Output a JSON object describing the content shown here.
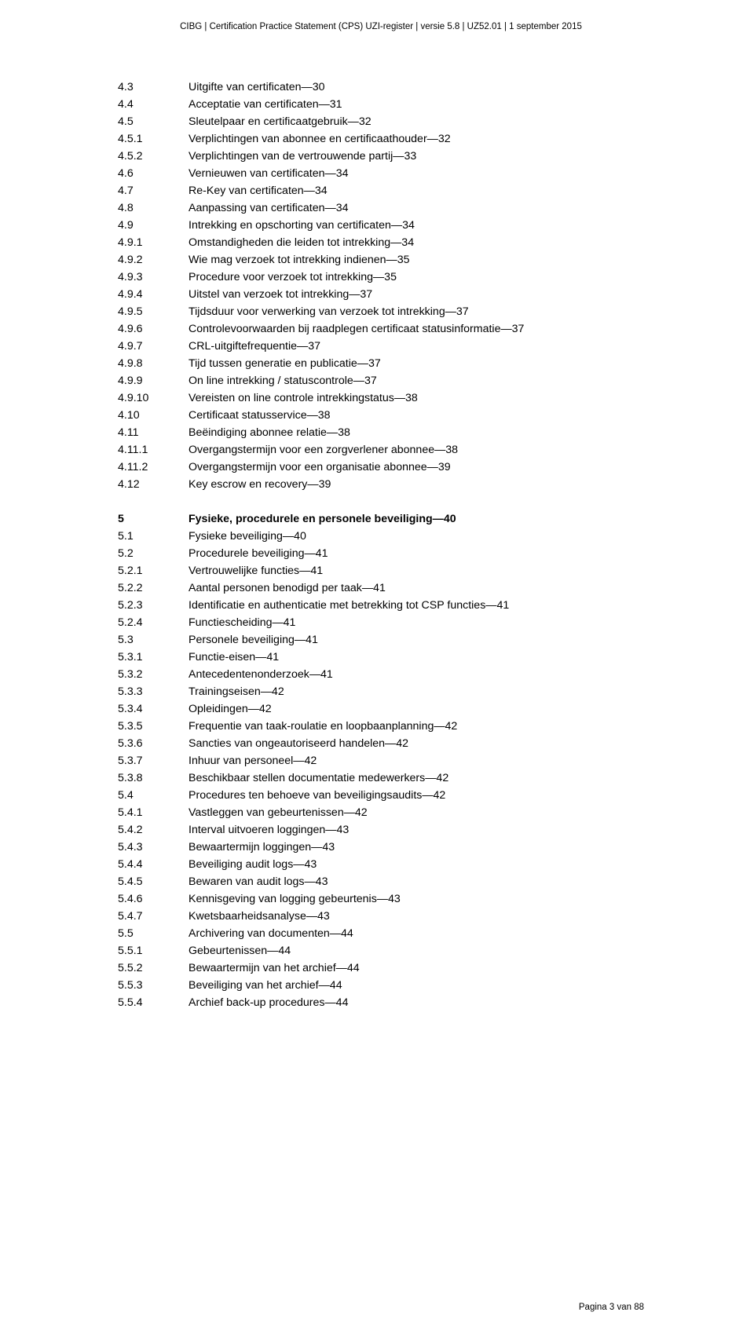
{
  "header": "CIBG | Certification Practice Statement (CPS) UZI-register | versie 5.8 | UZ52.01 | 1 september 2015",
  "footer": "Pagina 3 van 88",
  "entries": [
    {
      "num": "4.3",
      "text": "Uitgifte van certificaten—30"
    },
    {
      "num": "4.4",
      "text": "Acceptatie van certificaten—31"
    },
    {
      "num": "4.5",
      "text": "Sleutelpaar en certificaatgebruik—32"
    },
    {
      "num": "4.5.1",
      "text": "Verplichtingen van abonnee en certificaathouder—32"
    },
    {
      "num": "4.5.2",
      "text": "Verplichtingen van de vertrouwende partij—33"
    },
    {
      "num": "4.6",
      "text": "Vernieuwen van certificaten—34"
    },
    {
      "num": "4.7",
      "text": "Re-Key van certificaten—34"
    },
    {
      "num": "4.8",
      "text": "Aanpassing van certificaten—34"
    },
    {
      "num": "4.9",
      "text": "Intrekking en opschorting van certificaten—34"
    },
    {
      "num": "4.9.1",
      "text": "Omstandigheden die leiden tot intrekking—34"
    },
    {
      "num": "4.9.2",
      "text": "Wie mag verzoek tot intrekking indienen—35"
    },
    {
      "num": "4.9.3",
      "text": "Procedure voor verzoek tot intrekking—35"
    },
    {
      "num": "4.9.4",
      "text": "Uitstel van verzoek tot intrekking—37"
    },
    {
      "num": "4.9.5",
      "text": "Tijdsduur voor verwerking van verzoek tot intrekking—37"
    },
    {
      "num": "4.9.6",
      "text": "Controlevoorwaarden bij raadplegen certificaat statusinformatie—37"
    },
    {
      "num": "4.9.7",
      "text": "CRL-uitgiftefrequentie—37"
    },
    {
      "num": "4.9.8",
      "text": "Tijd tussen generatie en publicatie—37"
    },
    {
      "num": "4.9.9",
      "text": "On line intrekking / statuscontrole—37"
    },
    {
      "num": "4.9.10",
      "text": "Vereisten on line controle intrekkingstatus—38"
    },
    {
      "num": "4.10",
      "text": "Certificaat statusservice—38"
    },
    {
      "num": "4.11",
      "text": "Beëindiging abonnee relatie—38"
    },
    {
      "num": "4.11.1",
      "text": "Overgangstermijn voor een zorgverlener abonnee—38"
    },
    {
      "num": "4.11.2",
      "text": "Overgangstermijn voor een organisatie abonnee—39"
    },
    {
      "num": "4.12",
      "text": "Key escrow en recovery—39"
    },
    {
      "gap": true
    },
    {
      "num": "5",
      "text": "Fysieke, procedurele en personele beveiliging—40",
      "bold": true
    },
    {
      "num": "5.1",
      "text": "Fysieke beveiliging—40"
    },
    {
      "num": "5.2",
      "text": "Procedurele beveiliging—41"
    },
    {
      "num": "5.2.1",
      "text": "Vertrouwelijke functies—41"
    },
    {
      "num": "5.2.2",
      "text": "Aantal personen benodigd per taak—41"
    },
    {
      "num": "5.2.3",
      "text": "Identificatie en authenticatie met betrekking tot CSP functies—41"
    },
    {
      "num": "5.2.4",
      "text": "Functiescheiding—41"
    },
    {
      "num": "5.3",
      "text": "Personele beveiliging—41"
    },
    {
      "num": "5.3.1",
      "text": "Functie-eisen—41"
    },
    {
      "num": "5.3.2",
      "text": "Antecedentenonderzoek—41"
    },
    {
      "num": "5.3.3",
      "text": "Trainingseisen—42"
    },
    {
      "num": "5.3.4",
      "text": "Opleidingen—42"
    },
    {
      "num": "5.3.5",
      "text": "Frequentie van taak-roulatie en loopbaanplanning—42"
    },
    {
      "num": "5.3.6",
      "text": "Sancties van ongeautoriseerd handelen—42"
    },
    {
      "num": "5.3.7",
      "text": "Inhuur van personeel—42"
    },
    {
      "num": "5.3.8",
      "text": "Beschikbaar stellen documentatie medewerkers—42"
    },
    {
      "num": "5.4",
      "text": "Procedures ten behoeve van beveiligingsaudits—42"
    },
    {
      "num": "5.4.1",
      "text": "Vastleggen van gebeurtenissen—42"
    },
    {
      "num": "5.4.2",
      "text": "Interval uitvoeren loggingen—43"
    },
    {
      "num": "5.4.3",
      "text": "Bewaartermijn loggingen—43"
    },
    {
      "num": "5.4.4",
      "text": "Beveiliging audit logs—43"
    },
    {
      "num": "5.4.5",
      "text": "Bewaren van audit logs—43"
    },
    {
      "num": "5.4.6",
      "text": "Kennisgeving van logging gebeurtenis—43"
    },
    {
      "num": "5.4.7",
      "text": "Kwetsbaarheidsanalyse—43"
    },
    {
      "num": "5.5",
      "text": "Archivering van documenten—44"
    },
    {
      "num": "5.5.1",
      "text": "Gebeurtenissen—44"
    },
    {
      "num": "5.5.2",
      "text": "Bewaartermijn van het archief—44"
    },
    {
      "num": "5.5.3",
      "text": "Beveiliging van het archief—44"
    },
    {
      "num": "5.5.4",
      "text": "Archief back-up procedures—44"
    }
  ]
}
